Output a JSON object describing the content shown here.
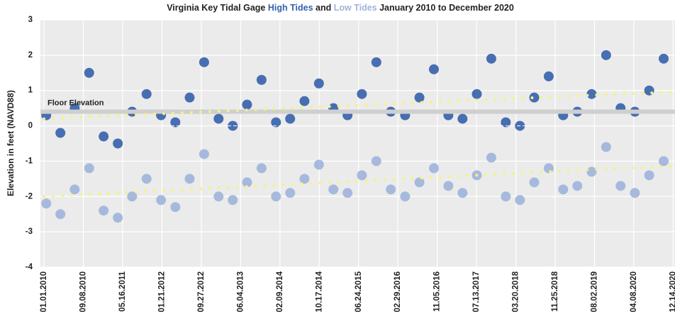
{
  "chart_data": {
    "type": "scatter",
    "title_start": "Virginia Key Tidal Gage",
    "title_middle": "and",
    "title_end": "January 2010 to December 2020",
    "ylabel": "Elevation in feet (NAVD88)",
    "ylim": [
      -4,
      3
    ],
    "yticks": [
      -4,
      -3,
      -2,
      -1,
      0,
      1,
      2,
      3
    ],
    "xlim": [
      "12.09.2009",
      "12.26.2020"
    ],
    "xticks": [
      "01.01.2010",
      "09.08.2010",
      "05.16.2011",
      "01.21.2012",
      "09.27.2012",
      "06.04.2013",
      "02.09.2014",
      "10.17.2014",
      "06.24.2015",
      "02.29.2016",
      "11.05.2016",
      "07.13.2017",
      "03.20.2018",
      "11.25.2018",
      "08.02.2019",
      "04.08.2020",
      "12.14.2020"
    ],
    "grid": true,
    "annotation": {
      "text": "Floor Elevation",
      "value": 0.4,
      "color": "#cfcfcf"
    },
    "x": [
      "01.15.2010",
      "04.15.2010",
      "07.15.2010",
      "10.15.2010",
      "01.15.2011",
      "04.15.2011",
      "07.15.2011",
      "10.15.2011",
      "01.15.2012",
      "04.15.2012",
      "07.15.2012",
      "10.15.2012",
      "01.15.2013",
      "04.15.2013",
      "07.15.2013",
      "10.15.2013",
      "01.15.2014",
      "04.15.2014",
      "07.15.2014",
      "10.15.2014",
      "01.15.2015",
      "04.15.2015",
      "07.15.2015",
      "10.15.2015",
      "01.15.2016",
      "04.15.2016",
      "07.15.2016",
      "10.15.2016",
      "01.15.2017",
      "04.15.2017",
      "07.15.2017",
      "10.15.2017",
      "01.15.2018",
      "04.15.2018",
      "07.15.2018",
      "10.15.2018",
      "01.15.2019",
      "04.15.2019",
      "07.15.2019",
      "10.15.2019",
      "01.15.2020",
      "04.15.2020",
      "07.15.2020",
      "10.15.2020"
    ],
    "series": [
      {
        "name": "High Tides",
        "color": "#3560ab",
        "values": [
          0.3,
          -0.2,
          0.5,
          1.5,
          -0.3,
          -0.5,
          0.4,
          0.9,
          0.3,
          0.1,
          0.8,
          1.8,
          0.2,
          0.0,
          0.6,
          1.3,
          0.1,
          0.2,
          0.7,
          1.2,
          0.5,
          0.3,
          0.9,
          1.8,
          0.4,
          0.3,
          0.8,
          1.6,
          0.3,
          0.2,
          0.9,
          1.9,
          0.1,
          0.0,
          0.8,
          1.4,
          0.3,
          0.4,
          0.9,
          2.0,
          0.5,
          0.4,
          1.0,
          1.9
        ]
      },
      {
        "name": "Low Tides",
        "color": "#9fb4db",
        "values": [
          -2.2,
          -2.5,
          -1.8,
          -1.2,
          -2.4,
          -2.6,
          -2.0,
          -1.5,
          -2.1,
          -2.3,
          -1.5,
          -0.8,
          -2.0,
          -2.1,
          -1.6,
          -1.2,
          -2.0,
          -1.9,
          -1.5,
          -1.1,
          -1.8,
          -1.9,
          -1.4,
          -1.0,
          -1.8,
          -2.0,
          -1.6,
          -1.2,
          -1.7,
          -1.9,
          -1.4,
          -0.9,
          -2.0,
          -2.1,
          -1.6,
          -1.2,
          -1.8,
          -1.7,
          -1.3,
          -0.6,
          -1.7,
          -1.9,
          -1.4,
          -1.0
        ]
      },
      {
        "type": "line",
        "style": "dotted",
        "color": "#f3f385",
        "x": [
          "01.01.2010",
          "01.01.2011",
          "01.01.2012",
          "01.01.2013",
          "01.01.2014",
          "01.01.2015",
          "01.01.2016",
          "01.01.2017",
          "01.01.2018",
          "01.01.2019",
          "01.01.2020",
          "12.14.2020"
        ],
        "values": [
          0.2,
          0.27,
          0.34,
          0.41,
          0.48,
          0.55,
          0.62,
          0.69,
          0.76,
          0.83,
          0.9,
          0.95
        ]
      },
      {
        "type": "line",
        "style": "dotted",
        "color": "#f3f385",
        "x": [
          "01.01.2010",
          "01.01.2011",
          "01.01.2012",
          "01.01.2013",
          "01.01.2014",
          "01.01.2015",
          "01.01.2016",
          "01.01.2017",
          "01.01.2018",
          "01.01.2019",
          "01.01.2020",
          "12.14.2020"
        ],
        "values": [
          -2.0,
          -1.92,
          -1.84,
          -1.76,
          -1.68,
          -1.6,
          -1.52,
          -1.44,
          -1.36,
          -1.28,
          -1.2,
          -1.15
        ]
      }
    ]
  }
}
